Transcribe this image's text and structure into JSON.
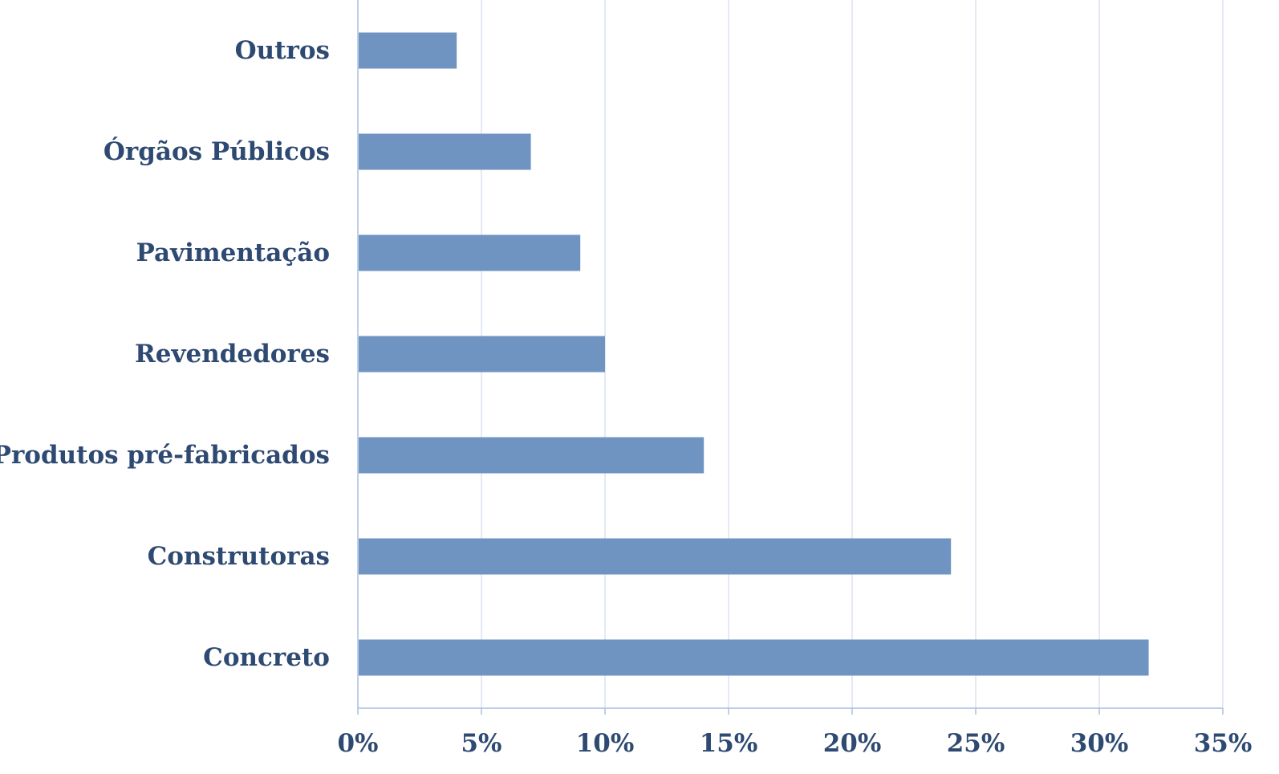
{
  "chart_data": {
    "type": "bar",
    "orientation": "horizontal",
    "categories": [
      "Outros",
      "Órgãos Públicos",
      "Pavimentação",
      "Revendedores",
      "Produtos pré-fabricados",
      "Construtoras",
      "Concreto"
    ],
    "values": [
      4,
      7,
      9,
      10,
      14,
      24,
      32
    ],
    "unit": "%",
    "title": "",
    "xlabel": "",
    "ylabel": "",
    "xlim": [
      0,
      35
    ],
    "xticks": [
      "0%",
      "5%",
      "10%",
      "15%",
      "20%",
      "25%",
      "30%",
      "35%"
    ],
    "grid": true,
    "legend": "none",
    "bar_color": "#7094c2",
    "text_color": "#2e4a72",
    "grid_color": "#c8d6ea"
  }
}
